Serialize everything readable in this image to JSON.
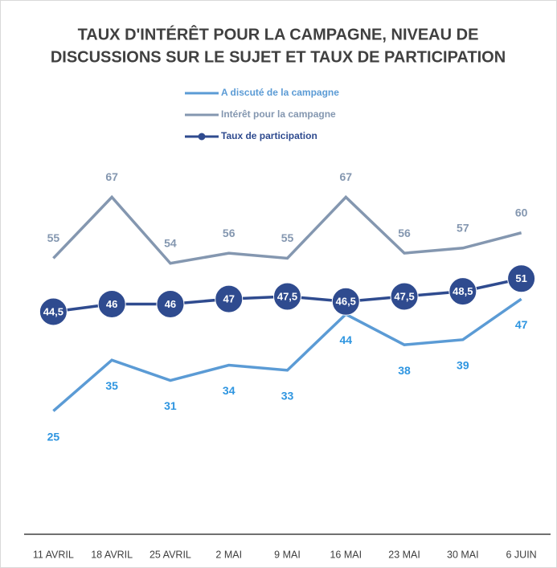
{
  "chart_data": {
    "type": "line",
    "title": [
      "TAUX D'INTÉRÊT POUR LA CAMPAGNE, NIVEAU DE",
      "DISCUSSIONS SUR LE SUJET ET TAUX DE PARTICIPATION"
    ],
    "categories": [
      "11 AVRIL",
      "18 AVRIL",
      "25 AVRIL",
      "2 MAI",
      "9 MAI",
      "16 MAI",
      "23 MAI",
      "30 MAI",
      "6 JUIN"
    ],
    "series": [
      {
        "name": "A discuté de la campagne",
        "color": "#5b9bd5",
        "label_color": "#2e95e0",
        "values": [
          25,
          35,
          31,
          34,
          33,
          44,
          38,
          39,
          47
        ]
      },
      {
        "name": "Intérêt pour la campagne",
        "color": "#8497b0",
        "label_color": "#8497b0",
        "values": [
          55,
          67,
          54,
          56,
          55,
          67,
          56,
          57,
          60
        ]
      },
      {
        "name": "Taux de participation",
        "color": "#2f4b8f",
        "label_color": "#ffffff",
        "markers": true,
        "values": [
          44.5,
          46,
          46,
          47,
          47.5,
          46.5,
          47.5,
          48.5,
          51
        ],
        "value_labels": [
          "44,5",
          "46",
          "46",
          "47",
          "47,5",
          "46,5",
          "47,5",
          "48,5",
          "51"
        ]
      }
    ],
    "ylim": [
      0,
      80
    ],
    "legend": "top"
  }
}
